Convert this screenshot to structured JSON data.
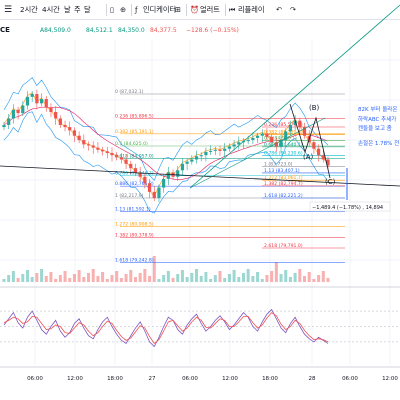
{
  "toolbar": {
    "timeframes": [
      "2시간",
      "4시간",
      "날",
      "주",
      "달"
    ],
    "menu_icon": "menu-icon",
    "compare_icon": "plus-circle-icon",
    "indicator_label": "인디케이터",
    "alert_label": "얼러트",
    "replay_label": "리플레이",
    "undo_icon": "undo-arrow-icon",
    "redo_icon": "redo-arrow-icon"
  },
  "symbol": {
    "ticker_fragment": "CE",
    "ohlc": [
      {
        "value": "A84,509.0"
      },
      {
        "value": "84,512.1"
      },
      {
        "value": "84,350.0"
      },
      {
        "value": "84,377.5",
        "color": "#ef5350"
      },
      {
        "value": "−128.6 (−0.15%)",
        "color": "#ef5350"
      }
    ]
  },
  "annotations": {
    "note_line1": "82K 부터 올라온",
    "note_line2": "하락ABC 추세가",
    "note_line3": "캔들을 보고 좀",
    "note_line4": "손절은 1.78% 전",
    "wave_b": "(B)",
    "wave_a": "(A)",
    "wave_c": "(C)",
    "measure": "−1,489.4 (−1.78%) , 14,894"
  },
  "chart_data": [
    {
      "type": "line",
      "name": "price-pane",
      "x_labels": [
        "06:00",
        "12:00",
        "18:00",
        "27",
        "06:00",
        "12:00",
        "18:00",
        "28",
        "06:00",
        "12:00"
      ],
      "fib_levels_upper": [
        {
          "ratio": "0",
          "price": "87,032.1",
          "color": "#787b86"
        },
        {
          "ratio": "0.236",
          "price": "85,896.5",
          "color": "#f23645"
        },
        {
          "ratio": "0.382",
          "price": "85,191.1",
          "color": "#ff9800"
        },
        {
          "ratio": "0.5",
          "price": "84,625.0",
          "color": "#4caf50"
        },
        {
          "ratio": "0.618",
          "price": "84,057.0",
          "color": "#089981"
        },
        {
          "ratio": "0.786",
          "price": "83,248.2",
          "color": "#00bcd4"
        },
        {
          "ratio": "0.886",
          "price": "82,766.8",
          "color": "#2962ff"
        },
        {
          "ratio": "1",
          "price": "82,217.9",
          "color": "#787b86"
        },
        {
          "ratio": "1.13",
          "price": "81,592.1",
          "color": "#2962ff"
        },
        {
          "ratio": "1.272",
          "price": "80,908.5",
          "color": "#ff9800"
        },
        {
          "ratio": "1.382",
          "price": "80,378.9",
          "color": "#f23645"
        },
        {
          "ratio": "1.618",
          "price": "79,242.8",
          "color": "#2962ff"
        }
      ],
      "fib_levels_right": [
        {
          "ratio": "0.236",
          "price": "85,579.9",
          "color": "#f23645"
        },
        {
          "ratio": "0.382",
          "price": "85,220.3",
          "color": "#ff9800"
        },
        {
          "ratio": "0.5",
          "price": "84,930.1",
          "color": "#4caf50"
        },
        {
          "ratio": "0.618",
          "price": "84,640.1",
          "color": "#089981"
        },
        {
          "ratio": "0.786",
          "price": "84,230.6",
          "color": "#00bcd4"
        },
        {
          "ratio": "1",
          "price": "83,723.0",
          "color": "#787b86"
        },
        {
          "ratio": "1.13",
          "price": "83,407.1",
          "color": "#2962ff"
        },
        {
          "ratio": "1.272",
          "price": "83,061.7",
          "color": "#ff9800"
        },
        {
          "ratio": "1.382",
          "price": "82,794.7",
          "color": "#f23645"
        },
        {
          "ratio": "1.618",
          "price": "82,221.2",
          "color": "#2962ff"
        },
        {
          "ratio": "2.618",
          "price": "79,791.0",
          "color": "#f23645"
        }
      ],
      "close_series": [
        85600,
        85900,
        86300,
        86150,
        86500,
        86900,
        87032,
        86600,
        86800,
        86400,
        86200,
        85900,
        85600,
        85500,
        85350,
        85100,
        84900,
        84700,
        84650,
        84550,
        84450,
        84377,
        84300,
        84200,
        84100,
        84000,
        83800,
        83600,
        83400,
        83200,
        82900,
        82500,
        82217,
        82700,
        83100,
        83400,
        83200,
        83500,
        83800,
        83900,
        84000,
        84150,
        84200,
        84350,
        84400,
        84450,
        84400,
        84500,
        84600,
        84700,
        84800,
        84850,
        84900,
        85000,
        85100,
        85200,
        85050,
        84800,
        84600,
        84900,
        85300,
        85600,
        85800,
        85500,
        85100,
        84800,
        84500,
        84200,
        84000,
        83723
      ]
    },
    {
      "type": "line",
      "name": "oscillator-pane",
      "series": [
        {
          "name": "",
          "color": "#7e57c2",
          "values": [
            52,
            60,
            68,
            55,
            48,
            62,
            70,
            58,
            46,
            40,
            50,
            58,
            44,
            36,
            42,
            54,
            60,
            48,
            38,
            34,
            46,
            56,
            62,
            50,
            40,
            32,
            28,
            38,
            48,
            56,
            44,
            30,
            24,
            36,
            50,
            62,
            58,
            46,
            40,
            52,
            60,
            66,
            54,
            44,
            50,
            58,
            64,
            56,
            46,
            52,
            60,
            68,
            62,
            50,
            44,
            56,
            66,
            72,
            60,
            48,
            42,
            54,
            62,
            50,
            40,
            34,
            30,
            36,
            32,
            28
          ]
        },
        {
          "name": "",
          "color": "#ef5350",
          "values": [
            55,
            58,
            62,
            60,
            54,
            56,
            63,
            62,
            54,
            46,
            47,
            52,
            50,
            42,
            41,
            48,
            55,
            52,
            44,
            38,
            42,
            50,
            57,
            54,
            45,
            37,
            32,
            35,
            43,
            51,
            48,
            37,
            28,
            33,
            44,
            56,
            58,
            51,
            44,
            48,
            56,
            62,
            58,
            49,
            48,
            54,
            60,
            58,
            50,
            50,
            56,
            63,
            63,
            55,
            48,
            52,
            61,
            68,
            64,
            53,
            46,
            50,
            58,
            54,
            45,
            38,
            33,
            34,
            33,
            30
          ]
        }
      ],
      "ylim": [
        0,
        100
      ],
      "bands": [
        30,
        50,
        70
      ]
    }
  ]
}
